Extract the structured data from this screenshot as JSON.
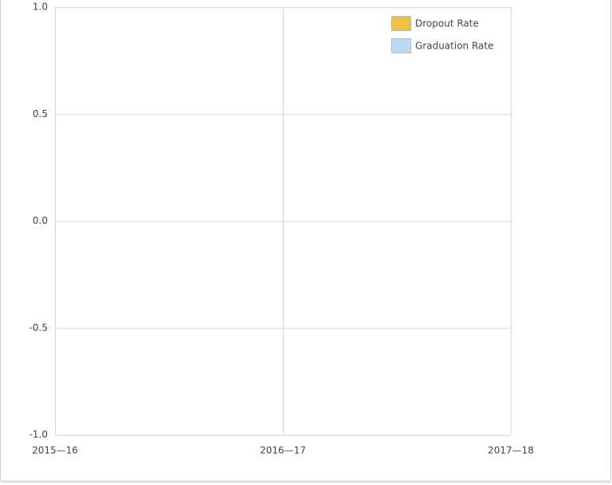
{
  "chart_data": {
    "type": "line",
    "categories": [
      "2015—16",
      "2016—17",
      "2017—18"
    ],
    "series": [
      {
        "name": "Dropout Rate",
        "color": "#f0c040",
        "values": [
          null,
          null,
          null
        ]
      },
      {
        "name": "Graduation Rate",
        "color": "#b8dcf8",
        "values": [
          null,
          null,
          null
        ]
      }
    ],
    "ylim": [
      -1,
      1
    ],
    "yticks": [
      {
        "value": -1,
        "label": "-1.0"
      },
      -0.5,
      {
        "value": 0,
        "label": "0.0"
      },
      0.5,
      {
        "value": 1,
        "label": "1.0"
      }
    ],
    "grid": true,
    "legend": "top-right"
  }
}
